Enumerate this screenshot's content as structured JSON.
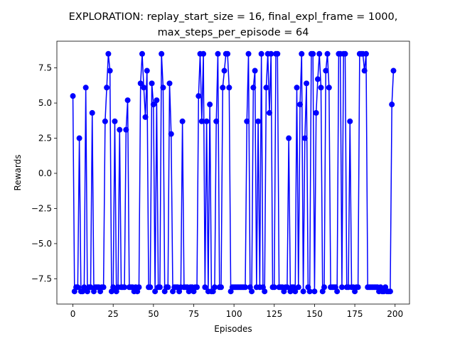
{
  "chart_data": {
    "type": "line",
    "title": [
      "EXPLORATION: replay_start_size = 16, final_expl_frame = 1000,",
      "max_steps_per_episode = 64"
    ],
    "x_label": "Episodes",
    "y_label": "Rewards",
    "x": [
      0,
      1,
      2,
      3,
      4,
      5,
      6,
      7,
      8,
      9,
      10,
      11,
      12,
      13,
      14,
      15,
      16,
      17,
      18,
      19,
      20,
      21,
      22,
      23,
      24,
      25,
      26,
      27,
      28,
      29,
      30,
      31,
      32,
      33,
      34,
      35,
      36,
      37,
      38,
      39,
      40,
      41,
      42,
      43,
      44,
      45,
      46,
      47,
      48,
      49,
      50,
      51,
      52,
      53,
      54,
      55,
      56,
      57,
      58,
      59,
      60,
      61,
      62,
      63,
      64,
      65,
      66,
      67,
      68,
      69,
      70,
      71,
      72,
      73,
      74,
      75,
      76,
      77,
      78,
      79,
      80,
      81,
      82,
      83,
      84,
      85,
      86,
      87,
      88,
      89,
      90,
      91,
      92,
      93,
      94,
      95,
      96,
      97,
      98,
      99,
      100,
      101,
      102,
      103,
      104,
      105,
      106,
      107,
      108,
      109,
      110,
      111,
      112,
      113,
      114,
      115,
      116,
      117,
      118,
      119,
      120,
      121,
      122,
      123,
      124,
      125,
      126,
      127,
      128,
      129,
      130,
      131,
      132,
      133,
      134,
      135,
      136,
      137,
      138,
      139,
      140,
      141,
      142,
      143,
      144,
      145,
      146,
      147,
      148,
      149,
      150,
      151,
      152,
      153,
      154,
      155,
      156,
      157,
      158,
      159,
      160,
      161,
      162,
      163,
      164,
      165,
      166,
      167,
      168,
      169,
      170,
      171,
      172,
      173,
      174,
      175,
      176,
      177,
      178,
      179,
      180,
      181,
      182,
      183,
      184,
      185,
      186,
      187,
      188,
      189,
      190,
      191,
      192,
      193,
      194,
      195,
      196,
      197,
      198,
      199
    ],
    "series": [
      {
        "color": "#0000ff",
        "values": [
          5.5,
          -8.4,
          -8.1,
          -8.1,
          2.5,
          -8.4,
          -8.4,
          -8.1,
          6.1,
          -8.4,
          -8.1,
          -8.1,
          4.3,
          -8.4,
          -8.1,
          -8.1,
          -8.1,
          -8.4,
          -8.1,
          -8.1,
          3.7,
          6.1,
          8.5,
          7.3,
          -8.4,
          -8.1,
          3.7,
          -8.4,
          -8.1,
          3.1,
          -8.1,
          -8.1,
          -8.1,
          3.1,
          5.2,
          -8.1,
          -8.1,
          -8.1,
          -8.4,
          -8.1,
          -8.4,
          -8.1,
          6.4,
          8.5,
          6.1,
          4.0,
          7.3,
          -8.1,
          -8.1,
          6.4,
          4.9,
          -8.4,
          5.2,
          -8.1,
          -8.1,
          8.5,
          6.1,
          -8.4,
          -8.1,
          -8.1,
          6.4,
          2.8,
          -8.4,
          -8.1,
          -8.1,
          -8.1,
          -8.4,
          -8.1,
          3.7,
          -8.1,
          -8.1,
          -8.1,
          -8.4,
          -8.1,
          -8.1,
          -8.4,
          -8.1,
          -8.1,
          5.5,
          8.5,
          3.7,
          8.5,
          -8.1,
          3.7,
          -8.4,
          4.9,
          -8.4,
          -8.4,
          -8.1,
          3.7,
          8.5,
          -8.1,
          -8.1,
          6.1,
          7.3,
          8.5,
          8.5,
          6.1,
          -8.4,
          -8.1,
          -8.1,
          -8.1,
          -8.1,
          -8.1,
          -8.1,
          -8.1,
          -8.1,
          -8.1,
          3.7,
          8.5,
          -8.1,
          -8.4,
          6.1,
          7.3,
          -8.1,
          3.7,
          -8.1,
          8.5,
          -8.1,
          -8.4,
          6.1,
          8.5,
          4.3,
          8.5,
          -8.1,
          -8.1,
          8.5,
          8.5,
          -8.1,
          -8.1,
          -8.1,
          -8.4,
          -8.1,
          -8.1,
          2.5,
          -8.4,
          -8.1,
          -8.1,
          -8.4,
          6.1,
          -8.1,
          4.9,
          8.5,
          -8.4,
          2.5,
          6.4,
          -8.1,
          -8.4,
          8.5,
          8.5,
          -8.4,
          4.3,
          6.7,
          8.5,
          6.1,
          -8.4,
          -8.1,
          7.3,
          8.5,
          6.1,
          -8.1,
          -8.1,
          -8.1,
          -8.1,
          -8.4,
          8.5,
          8.5,
          -8.1,
          8.5,
          8.5,
          -8.1,
          -8.1,
          3.7,
          -8.1,
          -8.1,
          -8.4,
          -8.1,
          -8.1,
          8.5,
          8.5,
          8.5,
          7.3,
          8.5,
          -8.1,
          -8.1,
          -8.1,
          -8.1,
          -8.1,
          -8.1,
          -8.1,
          -8.4,
          -8.1,
          -8.4,
          -8.4,
          -8.1,
          -8.4,
          -8.4,
          -8.4,
          4.9,
          7.3
        ]
      }
    ],
    "xlim": [
      -9.95,
      208.95
    ],
    "ylim": [
      -9.3,
      9.4
    ],
    "xticks": [
      0,
      25,
      50,
      75,
      100,
      125,
      150,
      175,
      200
    ],
    "yticks": [
      {
        "value": -7.5,
        "label": "−7.5"
      },
      {
        "value": -5,
        "label": "−5.0"
      },
      {
        "value": -2.5,
        "label": "−2.5"
      },
      {
        "value": 0,
        "label": "0.0"
      },
      2.5,
      {
        "value": 5,
        "label": "5.0"
      },
      7.5
    ]
  }
}
